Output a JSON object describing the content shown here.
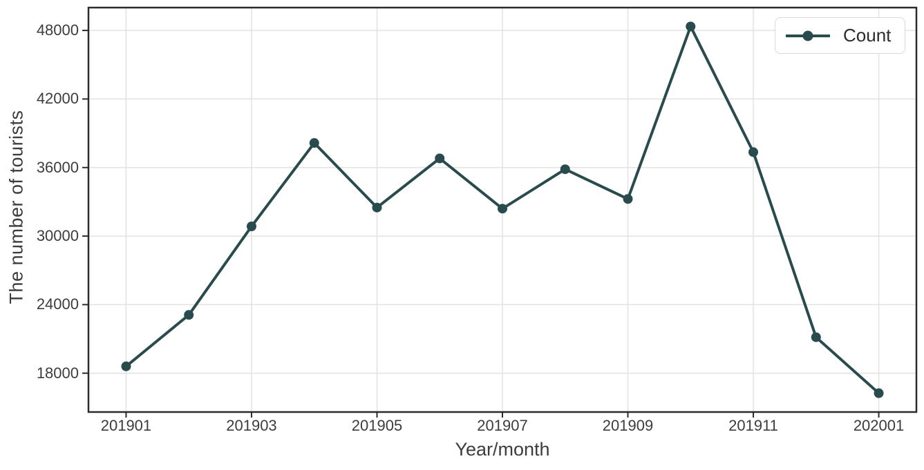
{
  "chart_data": {
    "type": "line",
    "title": "",
    "xlabel": "Year/month",
    "ylabel": "The number of tourists",
    "x": [
      "201901",
      "201902",
      "201903",
      "201904",
      "201905",
      "201906",
      "201907",
      "201908",
      "201909",
      "201910",
      "201911",
      "201912",
      "202001"
    ],
    "series": [
      {
        "name": "Count",
        "values": [
          18600,
          23100,
          30850,
          38150,
          32500,
          36800,
          32400,
          35850,
          33250,
          48350,
          37350,
          21150,
          16250
        ]
      }
    ],
    "x_tick_labels": [
      "201901",
      "201903",
      "201905",
      "201907",
      "201909",
      "201911",
      "202001"
    ],
    "y_ticks": [
      18000,
      24000,
      30000,
      36000,
      42000,
      48000
    ],
    "xlim": [
      -0.6,
      12.6
    ],
    "ylim": [
      14600,
      50000
    ],
    "grid": true,
    "legend": {
      "label": "Count",
      "position": "upper right"
    },
    "colors": {
      "line": "#2a4b4d",
      "grid": "#e2e2e2",
      "axis": "#2b2b2b",
      "text": "#3c3c3c",
      "background": "#ffffff"
    }
  }
}
